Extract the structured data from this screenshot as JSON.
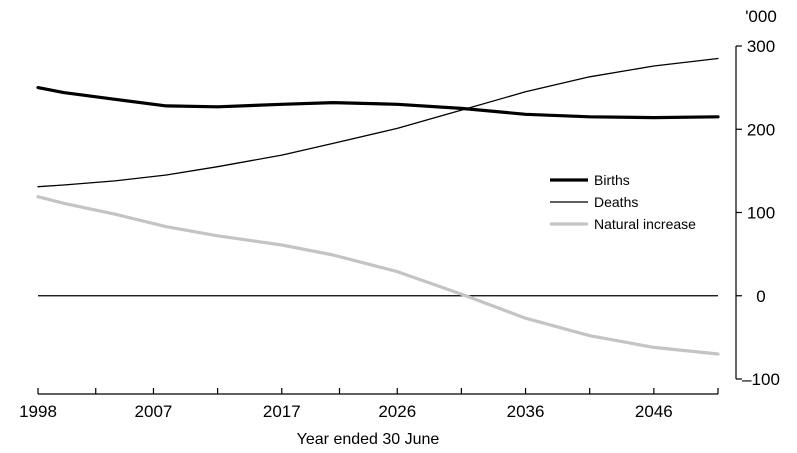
{
  "chart_data": {
    "type": "line",
    "xlabel": "Year ended 30 June",
    "y_unit": "'000",
    "xlim": [
      1998,
      2051
    ],
    "ylim": [
      -100,
      300
    ],
    "x_ticks": [
      1998,
      2007,
      2017,
      2026,
      2036,
      2046
    ],
    "y_ticks": [
      300,
      200,
      100,
      0,
      -100
    ],
    "reference_line_y": 0,
    "legend_position": "right-center",
    "series": [
      {
        "name": "Births",
        "color": "#000000",
        "weight": "thick",
        "x": [
          1998,
          2000,
          2004,
          2008,
          2012,
          2017,
          2021,
          2026,
          2031,
          2036,
          2041,
          2046,
          2051
        ],
        "y": [
          250,
          244,
          236,
          228,
          227,
          230,
          232,
          230,
          225,
          218,
          215,
          214,
          215
        ]
      },
      {
        "name": "Deaths",
        "color": "#000000",
        "weight": "thin",
        "x": [
          1998,
          2000,
          2004,
          2008,
          2012,
          2017,
          2021,
          2026,
          2031,
          2036,
          2041,
          2046,
          2051
        ],
        "y": [
          131,
          133,
          138,
          145,
          155,
          169,
          183,
          201,
          223,
          245,
          263,
          276,
          285
        ]
      },
      {
        "name": "Natural increase",
        "color": "#c4c4c4",
        "weight": "thick",
        "x": [
          1998,
          2000,
          2004,
          2008,
          2012,
          2017,
          2021,
          2026,
          2031,
          2036,
          2041,
          2046,
          2051
        ],
        "y": [
          119,
          111,
          98,
          83,
          72,
          61,
          49,
          29,
          2,
          -27,
          -48,
          -62,
          -70
        ]
      }
    ]
  }
}
